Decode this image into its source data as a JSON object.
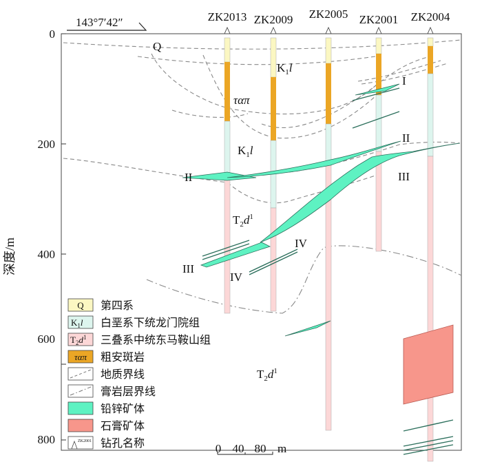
{
  "coordinate_label": "143°7′42″",
  "y_axis": {
    "label": "深度/m",
    "ticks": [
      "0",
      "200",
      "400",
      "600",
      "800"
    ]
  },
  "boreholes": [
    "ZK2013",
    "ZK2009",
    "ZK2005",
    "ZK2001",
    "ZK2004"
  ],
  "unit_labels": {
    "quaternary": "Q",
    "k1l_sub": "K",
    "k1l_index": "1",
    "k1l_suffix": "l",
    "porphyry": "ταπ",
    "t2d_main": "T",
    "t2d_index": "2",
    "t2d_letter": "d",
    "t2d_sup": "1"
  },
  "orebody_labels": {
    "I": "I",
    "II_right": "II",
    "II_left": "II",
    "III_right": "III",
    "III_left": "III",
    "IV_upper": "IV",
    "IV_lower": "IV"
  },
  "legend": {
    "items": [
      {
        "symbol": "Q",
        "label": "第四系"
      },
      {
        "symbol": "K1l",
        "label": "白垩系下统龙门院组"
      },
      {
        "symbol": "T2d1",
        "label": "三叠系中统东马鞍山组"
      },
      {
        "symbol": "ταπ",
        "label": "粗安斑岩"
      },
      {
        "symbol": "",
        "label": "地质界线"
      },
      {
        "symbol": "",
        "label": "膏岩层界线"
      },
      {
        "symbol": "",
        "label": "铅锌矿体"
      },
      {
        "symbol": "",
        "label": "石膏矿体"
      },
      {
        "symbol": "ZK2001",
        "label": "钻孔名称"
      }
    ]
  },
  "scale_bar": {
    "labels": [
      "0",
      "40",
      "80",
      "m"
    ]
  },
  "colors": {
    "quaternary": "#fbf7c2",
    "k1l": "#ddf5ee",
    "t2d": "#fcd7d7",
    "porphyry": "#eba625",
    "lead_zinc": "#5ef2c2",
    "gypsum": "#f7968b"
  }
}
